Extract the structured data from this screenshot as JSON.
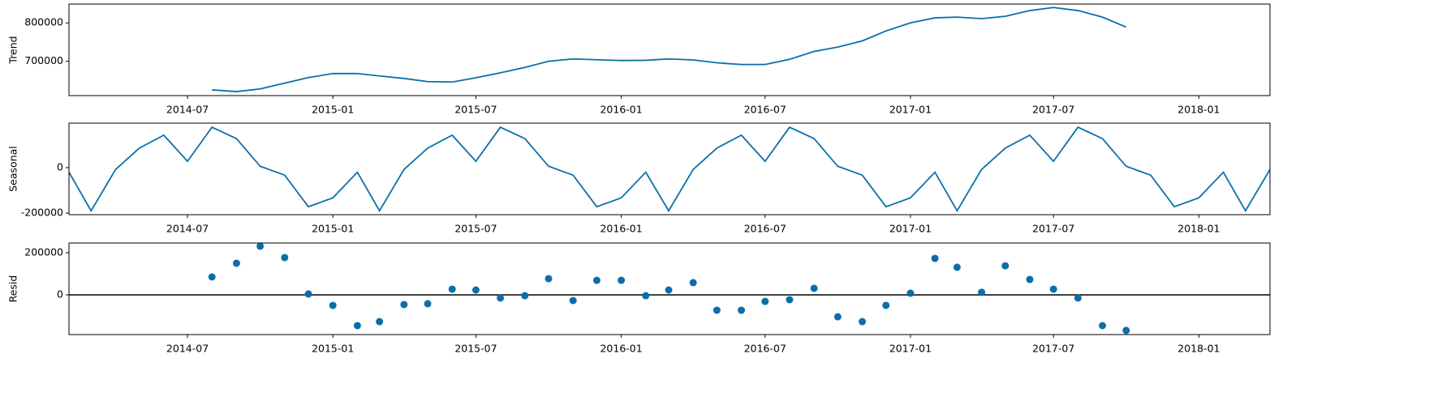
{
  "chart_data": [
    {
      "type": "line",
      "ylabel": "Trend",
      "color": "#0a6fa8",
      "x": [
        "2014-08",
        "2014-09",
        "2014-10",
        "2014-11",
        "2014-12",
        "2015-01",
        "2015-02",
        "2015-03",
        "2015-04",
        "2015-05",
        "2015-06",
        "2015-07",
        "2015-08",
        "2015-09",
        "2015-10",
        "2015-11",
        "2015-12",
        "2016-01",
        "2016-02",
        "2016-03",
        "2016-04",
        "2016-05",
        "2016-06",
        "2016-07",
        "2016-08",
        "2016-09",
        "2016-10",
        "2016-11",
        "2016-12",
        "2017-01",
        "2017-02",
        "2017-03",
        "2017-04",
        "2017-05",
        "2017-06",
        "2017-07",
        "2017-08",
        "2017-09",
        "2017-10"
      ],
      "values": [
        625500,
        621000,
        628000,
        643000,
        657500,
        668000,
        668000,
        661700,
        655300,
        647000,
        646000,
        657000,
        670000,
        684000,
        700000,
        706000,
        704000,
        702000,
        702500,
        706000,
        703500,
        696000,
        691500,
        691500,
        705000,
        725500,
        737000,
        753000,
        779000,
        800000,
        813000,
        815000,
        811000,
        817000,
        832000,
        840000,
        832000,
        815000,
        789000
      ],
      "xlim": [
        "2014-02",
        "2018-04"
      ],
      "xticks": [
        "2014-07",
        "2015-01",
        "2015-07",
        "2016-01",
        "2016-07",
        "2017-01",
        "2017-07",
        "2018-01"
      ],
      "ylim": [
        610600,
        849000
      ],
      "yticks": [
        700000,
        800000
      ]
    },
    {
      "type": "line",
      "ylabel": "Seasonal",
      "color": "#0a6fa8",
      "x": [
        "2014-02",
        "2014-03",
        "2014-04",
        "2014-05",
        "2014-06",
        "2014-07",
        "2014-08",
        "2014-09",
        "2014-10",
        "2014-11",
        "2014-12",
        "2015-01",
        "2015-02",
        "2015-03",
        "2015-04",
        "2015-05",
        "2015-06",
        "2015-07",
        "2015-08",
        "2015-09",
        "2015-10",
        "2015-11",
        "2015-12",
        "2016-01",
        "2016-02",
        "2016-03",
        "2016-04",
        "2016-05",
        "2016-06",
        "2016-07",
        "2016-08",
        "2016-09",
        "2016-10",
        "2016-11",
        "2016-12",
        "2017-01",
        "2017-02",
        "2017-03",
        "2017-04",
        "2017-05",
        "2017-06",
        "2017-07",
        "2017-08",
        "2017-09",
        "2017-10",
        "2017-11",
        "2017-12",
        "2018-01",
        "2018-02",
        "2018-03",
        "2018-04"
      ],
      "values": [
        -20000,
        -190000,
        -8000,
        86000,
        143000,
        28000,
        178000,
        128000,
        6000,
        -33000,
        -172000,
        -133000,
        -20000,
        -190000,
        -8000,
        86000,
        143000,
        28000,
        178000,
        128000,
        6000,
        -33000,
        -172000,
        -133000,
        -20000,
        -190000,
        -8000,
        86000,
        143000,
        28000,
        178000,
        128000,
        6000,
        -33000,
        -172000,
        -133000,
        -20000,
        -190000,
        -8000,
        86000,
        143000,
        28000,
        178000,
        128000,
        6000,
        -33000,
        -172000,
        -133000,
        -20000,
        -190000,
        -8000
      ],
      "xlim": [
        "2014-02",
        "2018-04"
      ],
      "xticks": [
        "2014-07",
        "2015-01",
        "2015-07",
        "2016-01",
        "2016-07",
        "2017-01",
        "2017-07",
        "2018-01"
      ],
      "ylim": [
        -207000,
        196000
      ],
      "yticks": [
        -200000,
        0
      ]
    },
    {
      "type": "scatter",
      "ylabel": "Resid",
      "color": "#0a6fa8",
      "axhline": 0,
      "x": [
        "2014-08",
        "2014-09",
        "2014-10",
        "2014-11",
        "2014-12",
        "2015-01",
        "2015-02",
        "2015-03",
        "2015-04",
        "2015-05",
        "2015-06",
        "2015-07",
        "2015-08",
        "2015-09",
        "2015-10",
        "2015-11",
        "2015-12",
        "2016-01",
        "2016-02",
        "2016-03",
        "2016-04",
        "2016-05",
        "2016-06",
        "2016-07",
        "2016-08",
        "2016-09",
        "2016-10",
        "2016-11",
        "2016-12",
        "2017-01",
        "2017-02",
        "2017-03",
        "2017-04",
        "2017-05",
        "2017-06",
        "2017-07",
        "2017-08",
        "2017-09",
        "2017-10"
      ],
      "values": [
        85000,
        150000,
        231000,
        177000,
        4000,
        -50000,
        -146000,
        -127000,
        -46000,
        -42000,
        27000,
        23000,
        -15000,
        -4000,
        77000,
        -27000,
        69000,
        69000,
        -4000,
        23000,
        58000,
        -73000,
        -73000,
        -31000,
        -23000,
        31000,
        -104000,
        -127000,
        -50000,
        8000,
        173000,
        131000,
        12000,
        138000,
        73000,
        27000,
        -15000,
        -146000,
        -169000
      ],
      "xlim": [
        "2014-02",
        "2018-04"
      ],
      "xticks": [
        "2014-07",
        "2015-01",
        "2015-07",
        "2016-01",
        "2016-07",
        "2017-01",
        "2017-07",
        "2018-01"
      ],
      "ylim": [
        -188500,
        246000
      ],
      "yticks": [
        0,
        200000
      ]
    }
  ]
}
